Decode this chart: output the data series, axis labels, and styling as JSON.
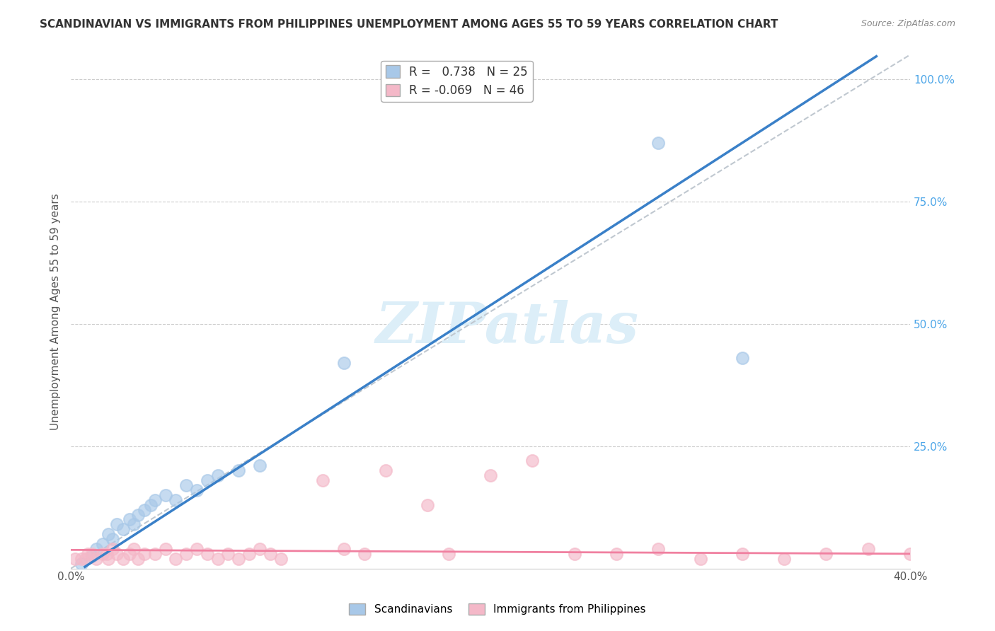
{
  "title": "SCANDINAVIAN VS IMMIGRANTS FROM PHILIPPINES UNEMPLOYMENT AMONG AGES 55 TO 59 YEARS CORRELATION CHART",
  "source": "Source: ZipAtlas.com",
  "xlabel": "",
  "ylabel": "Unemployment Among Ages 55 to 59 years",
  "xlim": [
    0.0,
    0.4
  ],
  "ylim": [
    0.0,
    1.05
  ],
  "xticks": [
    0.0,
    0.1,
    0.2,
    0.3,
    0.4
  ],
  "xticklabels": [
    "0.0%",
    "",
    "",
    "",
    "40.0%"
  ],
  "yticks_right": [
    0.25,
    0.5,
    0.75,
    1.0
  ],
  "yticklabels_right": [
    "25.0%",
    "50.0%",
    "75.0%",
    "100.0%"
  ],
  "legend_labels": [
    "Scandinavians",
    "Immigrants from Philippines"
  ],
  "scandinavian_R": 0.738,
  "scandinavian_N": 25,
  "philippines_R": -0.069,
  "philippines_N": 46,
  "blue_color": "#a8c8e8",
  "pink_color": "#f4b8c8",
  "blue_line_color": "#3a80c8",
  "pink_line_color": "#f080a0",
  "diagonal_color": "#c0c8d0",
  "watermark": "ZIPatlas",
  "watermark_color": "#dceef8",
  "title_fontsize": 11,
  "source_fontsize": 9,
  "legend_fontsize": 11,
  "blue_scatter_x": [
    0.005,
    0.01,
    0.012,
    0.015,
    0.018,
    0.02,
    0.022,
    0.025,
    0.028,
    0.03,
    0.032,
    0.035,
    0.038,
    0.04,
    0.045,
    0.05,
    0.055,
    0.06,
    0.065,
    0.07,
    0.08,
    0.09,
    0.13,
    0.28,
    0.32
  ],
  "blue_scatter_y": [
    0.01,
    0.025,
    0.04,
    0.05,
    0.07,
    0.06,
    0.09,
    0.08,
    0.1,
    0.09,
    0.11,
    0.12,
    0.13,
    0.14,
    0.15,
    0.14,
    0.17,
    0.16,
    0.18,
    0.19,
    0.2,
    0.21,
    0.42,
    0.87,
    0.43
  ],
  "pink_scatter_x": [
    0.002,
    0.005,
    0.007,
    0.008,
    0.01,
    0.012,
    0.015,
    0.017,
    0.018,
    0.02,
    0.022,
    0.025,
    0.028,
    0.03,
    0.032,
    0.035,
    0.04,
    0.045,
    0.05,
    0.055,
    0.06,
    0.065,
    0.07,
    0.075,
    0.08,
    0.085,
    0.09,
    0.095,
    0.1,
    0.12,
    0.13,
    0.14,
    0.15,
    0.17,
    0.18,
    0.2,
    0.22,
    0.24,
    0.26,
    0.28,
    0.3,
    0.32,
    0.34,
    0.36,
    0.38,
    0.4
  ],
  "pink_scatter_y": [
    0.02,
    0.02,
    0.02,
    0.03,
    0.03,
    0.02,
    0.03,
    0.03,
    0.02,
    0.04,
    0.03,
    0.02,
    0.03,
    0.04,
    0.02,
    0.03,
    0.03,
    0.04,
    0.02,
    0.03,
    0.04,
    0.03,
    0.02,
    0.03,
    0.02,
    0.03,
    0.04,
    0.03,
    0.02,
    0.18,
    0.04,
    0.03,
    0.2,
    0.13,
    0.03,
    0.19,
    0.22,
    0.03,
    0.03,
    0.04,
    0.02,
    0.03,
    0.02,
    0.03,
    0.04,
    0.03
  ],
  "blue_line_x0": 0.0,
  "blue_line_y0": -0.015,
  "blue_line_x1": 0.32,
  "blue_line_y1": 0.87,
  "pink_line_x0": 0.0,
  "pink_line_y0": 0.038,
  "pink_line_x1": 0.4,
  "pink_line_y1": 0.03
}
